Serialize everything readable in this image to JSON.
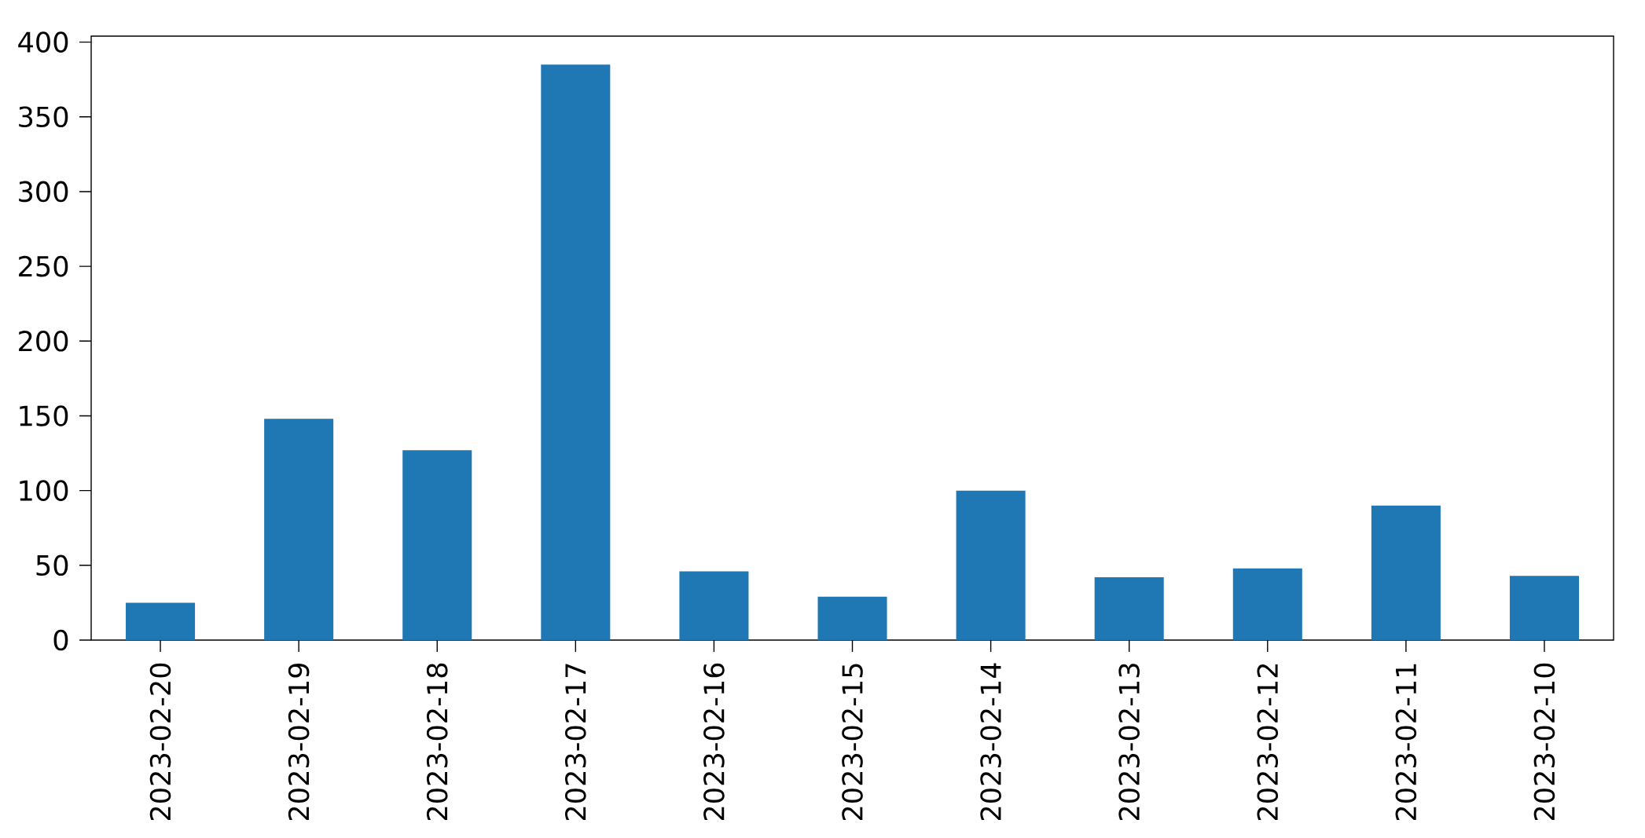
{
  "chart_data": {
    "type": "bar",
    "categories": [
      "2023-02-20",
      "2023-02-19",
      "2023-02-18",
      "2023-02-17",
      "2023-02-16",
      "2023-02-15",
      "2023-02-14",
      "2023-02-13",
      "2023-02-12",
      "2023-02-11",
      "2023-02-10"
    ],
    "values": [
      25,
      148,
      127,
      385,
      46,
      29,
      100,
      42,
      48,
      90,
      43
    ],
    "color": "#1f77b4",
    "ylim": [
      0,
      404
    ],
    "yticks": [
      0,
      50,
      100,
      150,
      200,
      250,
      300,
      350,
      400
    ],
    "grid": false
  }
}
